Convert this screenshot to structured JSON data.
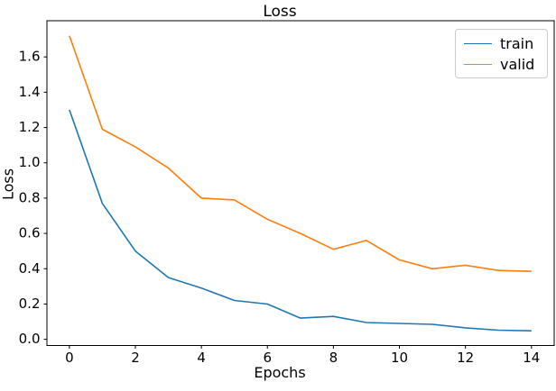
{
  "figure": {
    "background": "#ffffff",
    "text_color": "#000000",
    "axis_color": "#000000"
  },
  "chart_data": {
    "type": "line",
    "title": "Loss",
    "xlabel": "Epochs",
    "ylabel": "Loss",
    "x": [
      0,
      1,
      2,
      3,
      4,
      5,
      6,
      7,
      8,
      9,
      10,
      11,
      12,
      13,
      14
    ],
    "series": [
      {
        "name": "train",
        "color": "#1f77b4",
        "values": [
          1.3,
          0.77,
          0.5,
          0.35,
          0.29,
          0.22,
          0.2,
          0.12,
          0.13,
          0.095,
          0.09,
          0.085,
          0.065,
          0.052,
          0.048
        ]
      },
      {
        "name": "valid",
        "color": "#ff7f0e",
        "values": [
          1.72,
          1.19,
          1.09,
          0.97,
          0.8,
          0.79,
          0.68,
          0.6,
          0.51,
          0.56,
          0.45,
          0.4,
          0.42,
          0.39,
          0.385
        ]
      }
    ],
    "xlim": [
      -0.68,
      14.69
    ],
    "ylim": [
      -0.035,
      1.805
    ],
    "xticks": {
      "values": [
        0,
        2,
        4,
        6,
        8,
        10,
        12,
        14
      ],
      "labels": [
        "0",
        "2",
        "4",
        "6",
        "8",
        "10",
        "12",
        "14"
      ]
    },
    "yticks": {
      "values": [
        0.0,
        0.2,
        0.4,
        0.6,
        0.8,
        1.0,
        1.2,
        1.4,
        1.6
      ],
      "labels": [
        "0.0",
        "0.2",
        "0.4",
        "0.6",
        "0.8",
        "1.0",
        "1.2",
        "1.4",
        "1.6"
      ]
    },
    "legend": {
      "position": "upper right",
      "entries": [
        "train",
        "valid"
      ]
    },
    "grid": false,
    "line_width": 1.6
  }
}
